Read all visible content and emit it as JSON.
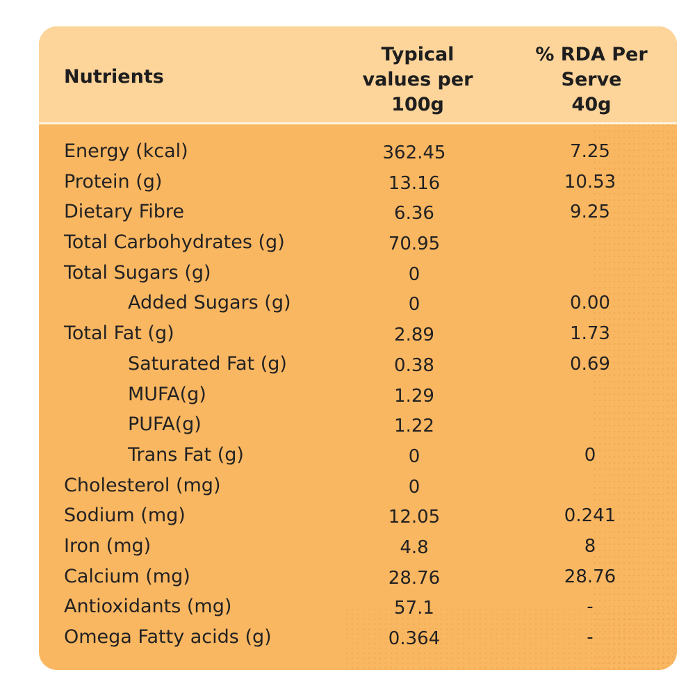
{
  "table": {
    "headers": {
      "nutrients": "Nutrients",
      "typical": "Typical\nvalues per\n100g",
      "rda": "% RDA Per\nServe\n40g"
    },
    "rows": [
      {
        "name": "Energy (kcal)",
        "indent": false,
        "value": "362.45",
        "rda": "7.25"
      },
      {
        "name": "Protein (g)",
        "indent": false,
        "value": "13.16",
        "rda": "10.53"
      },
      {
        "name": "Dietary Fibre",
        "indent": false,
        "value": "6.36",
        "rda": "9.25"
      },
      {
        "name": "Total Carbohydrates (g)",
        "indent": false,
        "value": "70.95",
        "rda": ""
      },
      {
        "name": "Total Sugars (g)",
        "indent": false,
        "value": "0",
        "rda": ""
      },
      {
        "name": "Added Sugars (g)",
        "indent": true,
        "value": "0",
        "rda": "0.00"
      },
      {
        "name": "Total Fat (g)",
        "indent": false,
        "value": "2.89",
        "rda": "1.73"
      },
      {
        "name": "Saturated Fat (g)",
        "indent": true,
        "value": "0.38",
        "rda": "0.69"
      },
      {
        "name": "MUFA(g)",
        "indent": true,
        "value": "1.29",
        "rda": ""
      },
      {
        "name": "PUFA(g)",
        "indent": true,
        "value": "1.22",
        "rda": ""
      },
      {
        "name": "Trans Fat (g)",
        "indent": true,
        "value": "0",
        "rda": "0"
      },
      {
        "name": "Cholesterol (mg)",
        "indent": false,
        "value": "0",
        "rda": ""
      },
      {
        "name": "Sodium (mg)",
        "indent": false,
        "value": "12.05",
        "rda": "0.241"
      },
      {
        "name": "Iron (mg)",
        "indent": false,
        "value": "4.8",
        "rda": "8"
      },
      {
        "name": "Calcium (mg)",
        "indent": false,
        "value": "28.76",
        "rda": "28.76"
      },
      {
        "name": "Antioxidants (mg)",
        "indent": false,
        "value": "57.1",
        "rda": "-"
      },
      {
        "name": "Omega Fatty acids (g)",
        "indent": false,
        "value": "0.364",
        "rda": "-"
      }
    ]
  },
  "colors": {
    "header_bg": "#fdd49a",
    "body_bg": "#fab762",
    "text": "#222222"
  }
}
